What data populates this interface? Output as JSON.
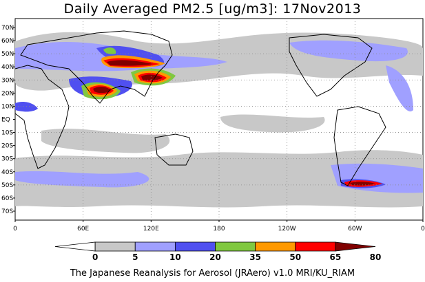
{
  "title": "Daily Averaged PM2.5 [ug/m3]: 17Nov2013",
  "footer": "The Japanese Reanalysis for Aerosol (JRAero) v1.0 MRI/KU_RIAM",
  "map": {
    "projection": "equirectangular",
    "lon_range": [
      0,
      360
    ],
    "lat_range": [
      -75,
      75
    ],
    "lat_labels": [
      "70N",
      "60N",
      "50N",
      "40N",
      "30N",
      "20N",
      "10N",
      "EQ",
      "10S",
      "20S",
      "30S",
      "40S",
      "50S",
      "60S",
      "70S"
    ],
    "lon_labels": [
      "0",
      "60E",
      "120E",
      "180",
      "120W",
      "60W",
      "0"
    ],
    "grid_lines": true
  },
  "colorbar": {
    "levels": [
      "0",
      "5",
      "10",
      "20",
      "35",
      "50",
      "65",
      "80"
    ],
    "colors": [
      "#ffffff",
      "#c8c8c8",
      "#a0a0ff",
      "#5050f0",
      "#80c840",
      "#ff9900",
      "#ff0000",
      "#800000"
    ]
  }
}
